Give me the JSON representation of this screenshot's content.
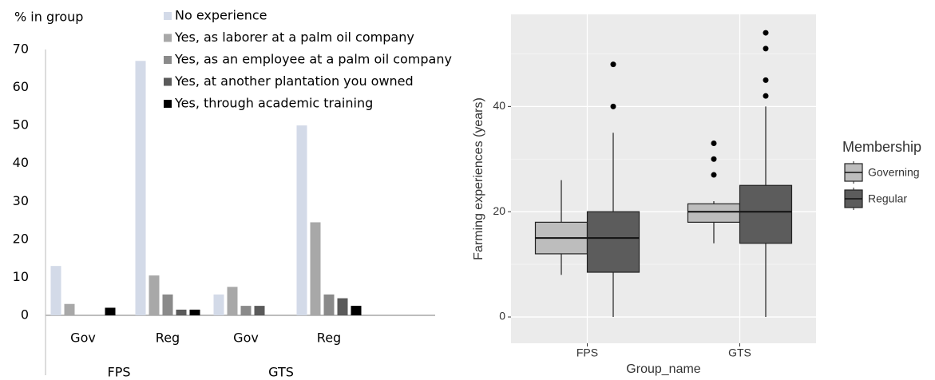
{
  "chart_data": [
    {
      "type": "bar",
      "y_label": "% in group",
      "categories": [
        "Gov",
        "Reg",
        "Gov",
        "Reg"
      ],
      "groups": [
        "FPS",
        "GTS"
      ],
      "series": [
        {
          "name": "No experience",
          "color": "#d3dae8",
          "values": [
            13,
            67,
            5.5,
            50
          ]
        },
        {
          "name": "Yes, as laborer at a palm oil company",
          "color": "#a8a8a8",
          "values": [
            3,
            10.5,
            7.5,
            24.5
          ]
        },
        {
          "name": "Yes, as an employee at a palm oil company",
          "color": "#8a8a8a",
          "values": [
            0,
            5.5,
            2.5,
            5.5
          ]
        },
        {
          "name": "Yes, at another plantation you owned",
          "color": "#5a5a5a",
          "values": [
            0,
            1.5,
            2.5,
            4.5
          ]
        },
        {
          "name": "Yes, through academic training",
          "color": "#000000",
          "values": [
            2,
            1.5,
            0,
            2.5
          ]
        }
      ],
      "ylim": [
        0,
        70
      ],
      "yticks": [
        0,
        10,
        20,
        30,
        40,
        50,
        60,
        70
      ]
    },
    {
      "type": "box",
      "x_label": "Group_name",
      "y_label": "Farming experiences (years)",
      "legend_title": "Membership",
      "categories": [
        "FPS",
        "GTS"
      ],
      "series": [
        {
          "name": "Governing",
          "color": "#bdbdbd",
          "boxes": [
            {
              "min": 8,
              "q1": 12,
              "median": 15,
              "q3": 18,
              "max": 26,
              "outliers": []
            },
            {
              "min": 14,
              "q1": 18,
              "median": 20,
              "q3": 21.5,
              "max": 22,
              "outliers": [
                27,
                30,
                33
              ]
            }
          ]
        },
        {
          "name": "Regular",
          "color": "#5c5c5c",
          "boxes": [
            {
              "min": 0,
              "q1": 8.5,
              "median": 15,
              "q3": 20,
              "max": 35,
              "outliers": [
                40,
                48
              ]
            },
            {
              "min": 0,
              "q1": 14,
              "median": 20,
              "q3": 25,
              "max": 40,
              "outliers": [
                42,
                45,
                51,
                54
              ]
            }
          ]
        }
      ],
      "ylim": [
        -5,
        57.5
      ],
      "yticks": [
        0,
        20,
        40
      ],
      "grid": true
    }
  ]
}
